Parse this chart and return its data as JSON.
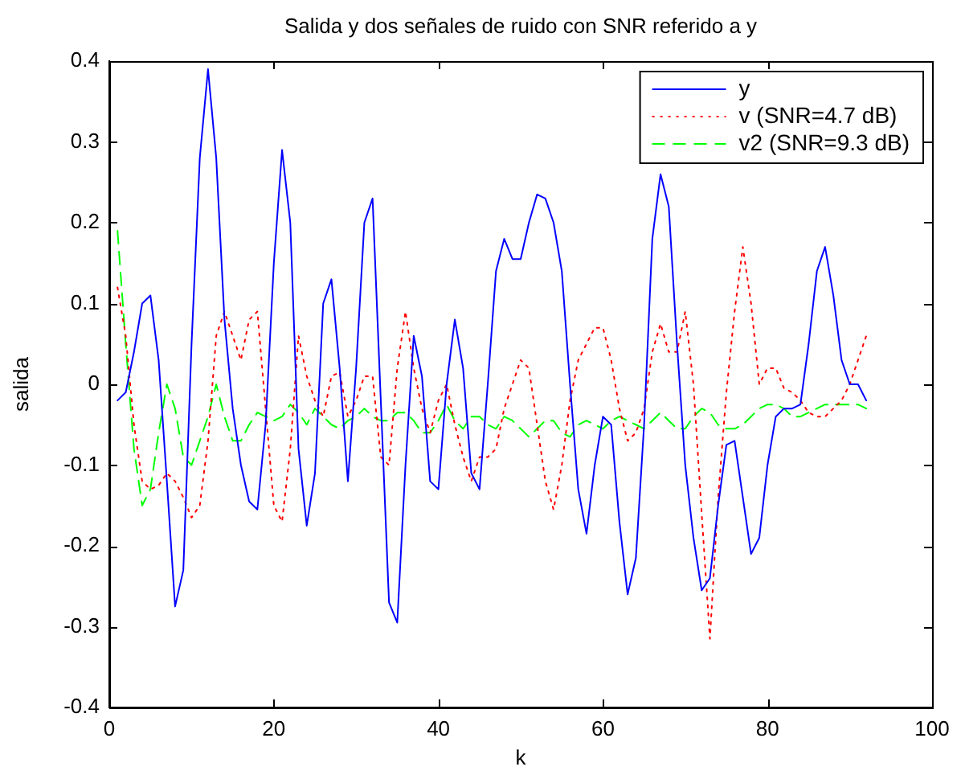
{
  "chart_data": {
    "type": "line",
    "title": "Salida y dos señales de ruido con SNR referido a y",
    "xlabel": "k",
    "ylabel": "salida",
    "x": [
      1,
      2,
      3,
      4,
      5,
      6,
      7,
      8,
      9,
      10,
      11,
      12,
      13,
      14,
      15,
      16,
      17,
      18,
      19,
      20,
      21,
      22,
      23,
      24,
      25,
      26,
      27,
      28,
      29,
      30,
      31,
      32,
      33,
      34,
      35,
      36,
      37,
      38,
      39,
      40,
      41,
      42,
      43,
      44,
      45,
      46,
      47,
      48,
      49,
      50,
      51,
      52,
      53,
      54,
      55,
      56,
      57,
      58,
      59,
      60,
      61,
      62,
      63,
      64,
      65,
      66,
      67,
      68,
      69,
      70,
      71,
      72,
      73,
      74,
      75,
      76,
      77,
      78,
      79,
      80,
      81,
      82,
      83,
      84,
      85,
      86,
      87,
      88,
      89,
      90,
      91,
      92
    ],
    "series": [
      {
        "name": "y",
        "color": "#0000ff",
        "line_style": "solid",
        "values": [
          -0.02,
          -0.01,
          0.04,
          0.1,
          0.11,
          0.03,
          -0.12,
          -0.275,
          -0.23,
          0.05,
          0.28,
          0.39,
          0.28,
          0.08,
          -0.03,
          -0.1,
          -0.145,
          -0.155,
          -0.05,
          0.15,
          0.29,
          0.2,
          -0.08,
          -0.175,
          -0.11,
          0.1,
          0.13,
          0.02,
          -0.12,
          0.02,
          0.2,
          0.23,
          -0.02,
          -0.27,
          -0.295,
          -0.1,
          0.06,
          0.01,
          -0.12,
          -0.13,
          0.0,
          0.08,
          0.02,
          -0.11,
          -0.13,
          0.0,
          0.14,
          0.18,
          0.155,
          0.155,
          0.2,
          0.235,
          0.23,
          0.2,
          0.14,
          0.0,
          -0.13,
          -0.185,
          -0.1,
          -0.04,
          -0.05,
          -0.17,
          -0.26,
          -0.215,
          -0.05,
          0.18,
          0.26,
          0.22,
          0.05,
          -0.1,
          -0.19,
          -0.255,
          -0.24,
          -0.15,
          -0.075,
          -0.07,
          -0.14,
          -0.21,
          -0.19,
          -0.1,
          -0.04,
          -0.03,
          -0.03,
          -0.025,
          0.05,
          0.14,
          0.17,
          0.11,
          0.03,
          0.0,
          0.0,
          -0.02
        ]
      },
      {
        "name": "v (SNR=4.7 dB)",
        "color": "#ff0000",
        "line_style": "dotted",
        "values": [
          0.12,
          0.06,
          -0.05,
          -0.12,
          -0.13,
          -0.125,
          -0.11,
          -0.12,
          -0.14,
          -0.165,
          -0.15,
          -0.07,
          0.06,
          0.09,
          0.06,
          0.03,
          0.08,
          0.09,
          -0.03,
          -0.15,
          -0.17,
          -0.08,
          0.06,
          0.01,
          -0.02,
          -0.04,
          0.01,
          0.015,
          -0.04,
          -0.02,
          0.01,
          0.01,
          -0.09,
          -0.1,
          0.02,
          0.09,
          0.02,
          -0.03,
          -0.06,
          -0.02,
          0.0,
          -0.05,
          -0.09,
          -0.12,
          -0.09,
          -0.09,
          -0.08,
          -0.03,
          0.0,
          0.03,
          0.02,
          -0.05,
          -0.12,
          -0.155,
          -0.1,
          -0.02,
          0.03,
          0.05,
          0.07,
          0.07,
          0.03,
          -0.03,
          -0.07,
          -0.06,
          -0.03,
          0.04,
          0.075,
          0.04,
          0.04,
          0.09,
          0.0,
          -0.16,
          -0.315,
          -0.14,
          -0.01,
          0.09,
          0.17,
          0.1,
          0.0,
          0.02,
          0.02,
          -0.005,
          -0.01,
          -0.02,
          -0.035,
          -0.04,
          -0.04,
          -0.03,
          -0.02,
          0.0,
          0.03,
          0.06
        ]
      },
      {
        "name": "v2 (SNR=9.3 dB)",
        "color": "#00ff00",
        "line_style": "dashed",
        "values": [
          0.19,
          0.05,
          -0.08,
          -0.15,
          -0.13,
          -0.06,
          0.0,
          -0.03,
          -0.09,
          -0.1,
          -0.07,
          -0.04,
          0.0,
          -0.04,
          -0.07,
          -0.07,
          -0.05,
          -0.035,
          -0.04,
          -0.045,
          -0.04,
          -0.025,
          -0.035,
          -0.05,
          -0.03,
          -0.04,
          -0.05,
          -0.055,
          -0.045,
          -0.04,
          -0.03,
          -0.04,
          -0.045,
          -0.045,
          -0.035,
          -0.035,
          -0.045,
          -0.06,
          -0.06,
          -0.045,
          -0.025,
          -0.045,
          -0.055,
          -0.04,
          -0.04,
          -0.05,
          -0.055,
          -0.04,
          -0.045,
          -0.055,
          -0.065,
          -0.055,
          -0.045,
          -0.045,
          -0.06,
          -0.065,
          -0.05,
          -0.045,
          -0.05,
          -0.055,
          -0.045,
          -0.04,
          -0.045,
          -0.05,
          -0.055,
          -0.045,
          -0.035,
          -0.045,
          -0.055,
          -0.055,
          -0.04,
          -0.03,
          -0.035,
          -0.05,
          -0.055,
          -0.055,
          -0.05,
          -0.04,
          -0.03,
          -0.025,
          -0.025,
          -0.03,
          -0.04,
          -0.04,
          -0.035,
          -0.03,
          -0.025,
          -0.025,
          -0.025,
          -0.025,
          -0.025,
          -0.03
        ]
      }
    ],
    "xlim": [
      0,
      100
    ],
    "xticks": [
      0,
      20,
      40,
      60,
      80,
      100
    ],
    "ylim": [
      -0.4,
      0.4
    ],
    "yticks": [
      -0.4,
      -0.3,
      -0.2,
      -0.1,
      0,
      0.1,
      0.2,
      0.3,
      0.4
    ],
    "grid": false,
    "legend": "top right",
    "marker": "none"
  }
}
